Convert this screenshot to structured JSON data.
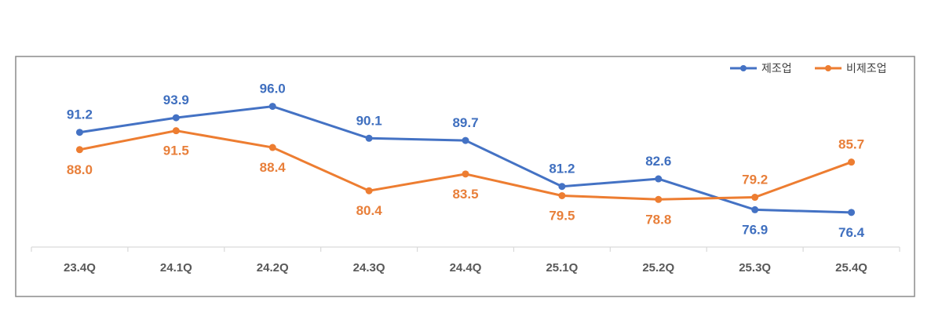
{
  "chart_data": {
    "type": "line",
    "title": "",
    "xlabel": "",
    "ylabel": "",
    "categories": [
      "23.4Q",
      "24.1Q",
      "24.2Q",
      "24.3Q",
      "24.4Q",
      "25.1Q",
      "25.2Q",
      "25.3Q",
      "25.4Q"
    ],
    "ylim": [
      70,
      100
    ],
    "grid": false,
    "legend": "top-right",
    "series": [
      {
        "name": "제조업",
        "color": "#4472C4",
        "values": [
          91.2,
          93.9,
          96.0,
          90.1,
          89.7,
          81.2,
          82.6,
          76.9,
          76.4
        ]
      },
      {
        "name": "비제조업",
        "color": "#ED7D31",
        "values": [
          88.0,
          91.5,
          88.4,
          80.4,
          83.5,
          79.5,
          78.8,
          79.2,
          85.7
        ]
      }
    ]
  }
}
